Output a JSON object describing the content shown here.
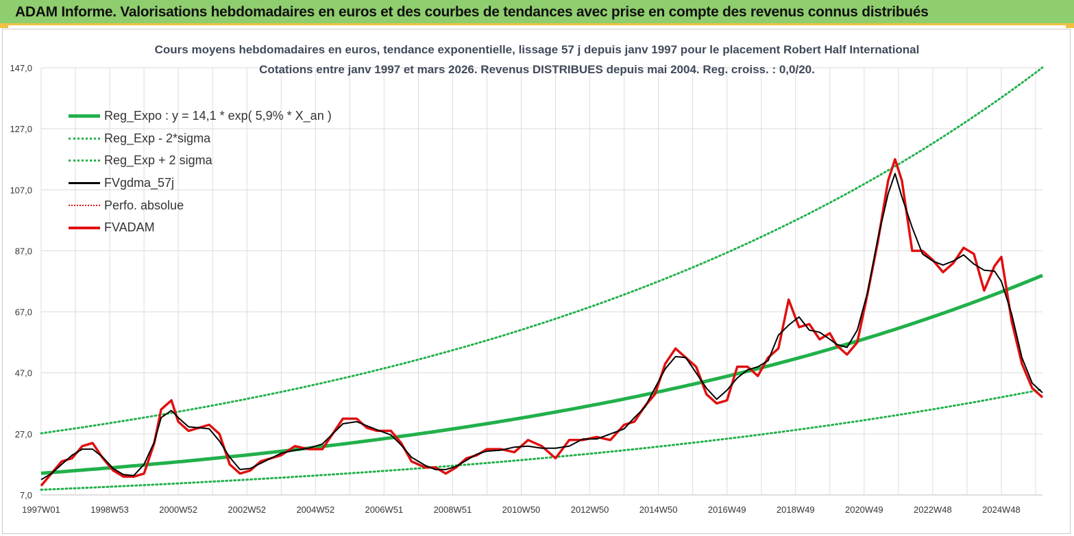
{
  "banner": {
    "title": "ADAM Informe. Valorisations hebdomadaires en euros et des courbes de tendances avec prise en compte des revenus connus distribués",
    "color": "#8fce6e"
  },
  "chart_data": {
    "type": "line",
    "title": "Cours moyens hebdomadaires en euros, tendance exponentielle, lissage 57 j depuis janv 1997 pour le placement Robert Half International",
    "subtitle": "Cotations entre janv 1997 et mars 2026. Revenus DISTRIBUES depuis mai 2004. Reg. croiss. : 0,0/20.",
    "xlabel": "",
    "ylabel": "",
    "ylim": [
      7.0,
      147.0
    ],
    "xlim": [
      1997.0,
      2026.2
    ],
    "y_ticks": [
      "7,0",
      "27,0",
      "47,0",
      "67,0",
      "87,0",
      "107,0",
      "127,0",
      "147,0"
    ],
    "x_ticks": [
      "1997W01",
      "1998W53",
      "2000W52",
      "2002W52",
      "2004W52",
      "2006W51",
      "2008W51",
      "2010W50",
      "2012W50",
      "2014W50",
      "2016W49",
      "2018W49",
      "2020W49",
      "2022W48",
      "2024W48"
    ],
    "grid": true,
    "legend_position": "top-left",
    "series": [
      {
        "name": "Reg_Expo : y = 14,1 * exp( 5,9% *  X_an )",
        "color": "#22b04b",
        "style": "solid-thick",
        "formula": {
          "a": 14.1,
          "b": 0.059
        }
      },
      {
        "name": "Reg_Exp - 2*sigma",
        "color": "#22b04b",
        "style": "dotted",
        "formula": {
          "a": 8.7,
          "b": 0.0536
        }
      },
      {
        "name": "Reg_Exp + 2 sigma",
        "color": "#22b04b",
        "style": "dotted",
        "formula": {
          "a": 27.2,
          "b": 0.0578
        }
      },
      {
        "name": "FVgdma_57j",
        "color": "#000000",
        "style": "solid",
        "smooth_of": "FVADAM"
      },
      {
        "name": "Perfo. absolue",
        "color": "#e01010",
        "style": "dotted",
        "x": [],
        "y": []
      },
      {
        "name": "FVADAM",
        "color": "#e01010",
        "style": "solid-thick",
        "x": [
          1997.0,
          1997.3,
          1997.6,
          1997.9,
          1998.2,
          1998.5,
          1998.8,
          1999.1,
          1999.4,
          1999.7,
          2000.0,
          2000.3,
          2000.5,
          2000.8,
          2001.0,
          2001.3,
          2001.6,
          2001.9,
          2002.2,
          2002.5,
          2002.8,
          2003.1,
          2003.4,
          2003.7,
          2004.0,
          2004.4,
          2004.8,
          2005.2,
          2005.5,
          2005.8,
          2006.2,
          2006.5,
          2006.8,
          2007.2,
          2007.5,
          2007.8,
          2008.2,
          2008.5,
          2008.8,
          2009.1,
          2009.4,
          2009.7,
          2010.0,
          2010.4,
          2010.8,
          2011.2,
          2011.6,
          2012.0,
          2012.4,
          2012.8,
          2013.2,
          2013.6,
          2014.0,
          2014.3,
          2014.6,
          2014.9,
          2015.2,
          2015.5,
          2015.8,
          2016.1,
          2016.4,
          2016.7,
          2017.0,
          2017.3,
          2017.6,
          2017.9,
          2018.2,
          2018.5,
          2018.8,
          2019.1,
          2019.4,
          2019.7,
          2020.0,
          2020.2,
          2020.5,
          2020.8,
          2021.1,
          2021.4,
          2021.7,
          2021.9,
          2022.1,
          2022.4,
          2022.7,
          2023.0,
          2023.3,
          2023.6,
          2023.9,
          2024.2,
          2024.5,
          2024.8,
          2025.0,
          2025.3,
          2025.6,
          2025.9,
          2026.2
        ],
        "y": [
          10,
          14,
          18,
          19,
          23,
          24,
          19,
          15,
          13,
          13,
          14,
          24,
          35,
          38,
          31,
          28,
          29,
          30,
          27,
          17,
          14,
          15,
          18,
          19,
          20,
          23,
          22,
          22,
          27,
          32,
          32,
          29,
          28,
          28,
          24,
          18,
          16,
          16,
          14,
          16,
          19,
          20,
          22,
          22,
          21,
          25,
          23,
          19,
          25,
          25,
          26,
          25,
          30,
          31,
          36,
          40,
          50,
          55,
          52,
          49,
          40,
          37,
          38,
          49,
          49,
          46,
          52,
          55,
          71,
          62,
          63,
          58,
          60,
          56,
          53,
          57,
          73,
          90,
          110,
          117,
          110,
          87,
          87,
          84,
          80,
          83,
          88,
          86,
          74,
          82,
          85,
          64,
          50,
          42,
          39
        ]
      }
    ]
  }
}
